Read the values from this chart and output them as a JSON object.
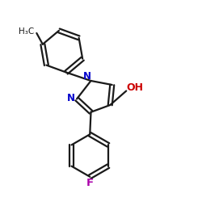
{
  "background": "#ffffff",
  "bond_color": "#1a1a1a",
  "N_color": "#0000cc",
  "O_color": "#cc0000",
  "F_color": "#aa00aa",
  "H3C_label": "H₃C",
  "N1_label": "N",
  "N2_label": "N",
  "OH_label": "OH",
  "F_label": "F",
  "figsize": [
    2.5,
    2.5
  ],
  "dpi": 100
}
